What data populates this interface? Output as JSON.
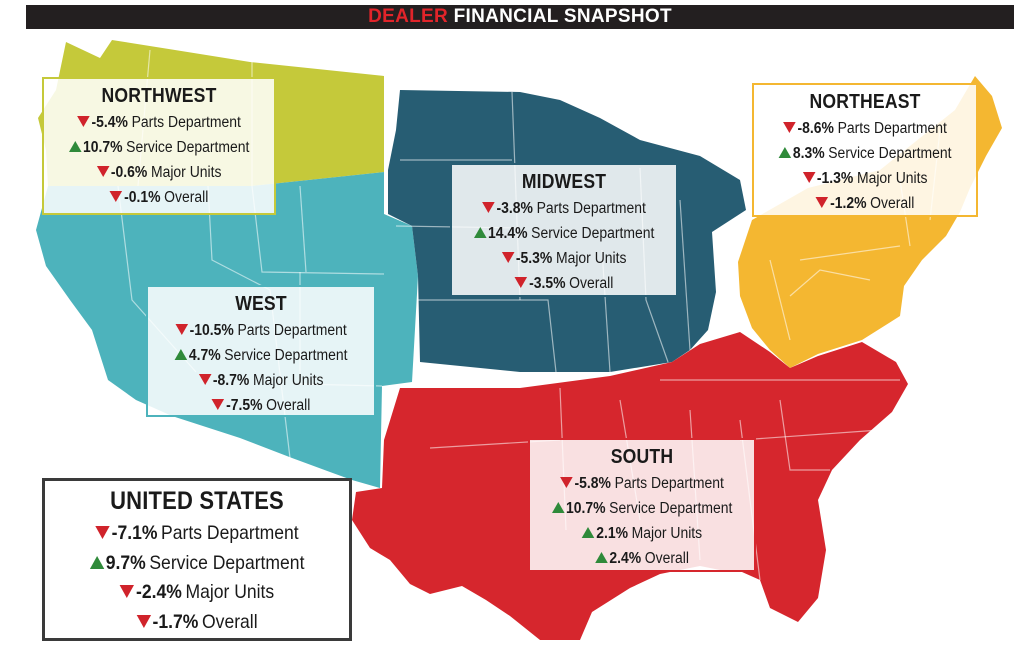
{
  "title": {
    "accent": "DEALER",
    "rest": "FINANCIAL SNAPSHOT"
  },
  "colors": {
    "northwest": "#c5c93a",
    "west": "#4db3bc",
    "midwest": "#275d73",
    "northeast": "#f4b731",
    "south": "#d6262d",
    "down_arrow": "#d0232b",
    "up_arrow": "#2f8a3a",
    "title_accent": "#e1242a"
  },
  "regions": {
    "northwest": {
      "name": "NORTHWEST",
      "stats": [
        {
          "value": "-5.4%",
          "label": "Parts Department",
          "trend": "down"
        },
        {
          "value": "10.7%",
          "label": "Service Department",
          "trend": "up"
        },
        {
          "value": "-0.6%",
          "label": "Major Units",
          "trend": "down"
        },
        {
          "value": "-0.1%",
          "label": "Overall",
          "trend": "down"
        }
      ]
    },
    "west": {
      "name": "WEST",
      "stats": [
        {
          "value": "-10.5%",
          "label": "Parts Department",
          "trend": "down"
        },
        {
          "value": "4.7%",
          "label": "Service Department",
          "trend": "up"
        },
        {
          "value": "-8.7%",
          "label": "Major Units",
          "trend": "down"
        },
        {
          "value": "-7.5%",
          "label": "Overall",
          "trend": "down"
        }
      ]
    },
    "midwest": {
      "name": "MIDWEST",
      "stats": [
        {
          "value": "-3.8%",
          "label": "Parts Department",
          "trend": "down"
        },
        {
          "value": "14.4%",
          "label": "Service Department",
          "trend": "up"
        },
        {
          "value": "-5.3%",
          "label": "Major Units",
          "trend": "down"
        },
        {
          "value": "-3.5%",
          "label": "Overall",
          "trend": "down"
        }
      ]
    },
    "northeast": {
      "name": "NORTHEAST",
      "stats": [
        {
          "value": "-8.6%",
          "label": "Parts Department",
          "trend": "down"
        },
        {
          "value": "8.3%",
          "label": "Service Department",
          "trend": "up"
        },
        {
          "value": "-1.3%",
          "label": "Major Units",
          "trend": "down"
        },
        {
          "value": "-1.2%",
          "label": "Overall",
          "trend": "down"
        }
      ]
    },
    "south": {
      "name": "SOUTH",
      "stats": [
        {
          "value": "-5.8%",
          "label": "Parts Department",
          "trend": "down"
        },
        {
          "value": "10.7%",
          "label": "Service Department",
          "trend": "up"
        },
        {
          "value": "2.1%",
          "label": "Major Units",
          "trend": "up"
        },
        {
          "value": "2.4%",
          "label": "Overall",
          "trend": "up"
        }
      ]
    },
    "us": {
      "name": "UNITED STATES",
      "stats": [
        {
          "value": "-7.1%",
          "label": "Parts Department",
          "trend": "down"
        },
        {
          "value": "9.7%",
          "label": "Service Department",
          "trend": "up"
        },
        {
          "value": "-2.4%",
          "label": "Major Units",
          "trend": "down"
        },
        {
          "value": "-1.7%",
          "label": "Overall",
          "trend": "down"
        }
      ]
    }
  }
}
